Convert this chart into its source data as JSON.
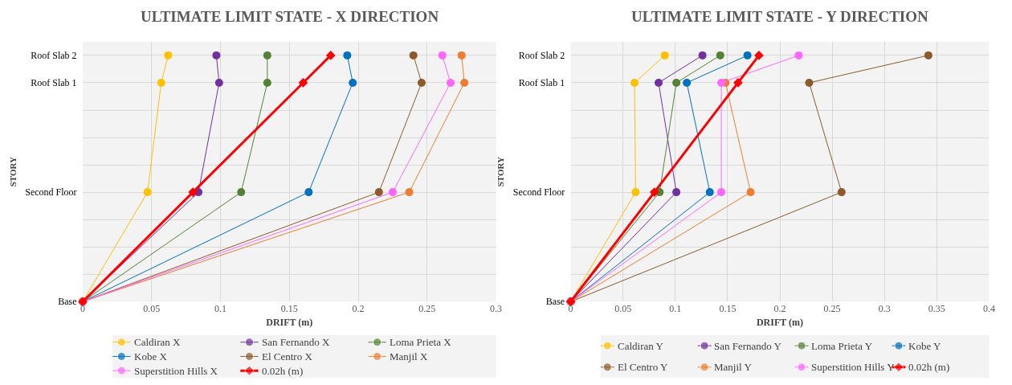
{
  "chart_data": [
    {
      "type": "line",
      "orientation": "horizontal",
      "title": "ULTIMATE LIMIT STATE - X DIRECTION",
      "xlabel": "DRIFT (m)",
      "ylabel": "STORY",
      "categories": [
        "Roof Slab 2",
        "Roof Slab 1",
        null,
        null,
        null,
        "Second Floor",
        null,
        null,
        null,
        "Base"
      ],
      "xlim": [
        0,
        0.3
      ],
      "xticks": [
        0,
        0.05,
        0.1,
        0.15,
        0.2,
        0.25,
        0.3
      ],
      "grid": true,
      "legend": "bottom",
      "marker": "circle",
      "series": [
        {
          "name": "Caldiran X",
          "color": "#ffc000",
          "values": [
            0.062,
            0.057,
            null,
            null,
            null,
            0.047,
            null,
            null,
            null,
            0
          ]
        },
        {
          "name": "San Fernando X",
          "color": "#7030a0",
          "values": [
            0.097,
            0.099,
            null,
            null,
            null,
            0.084,
            null,
            null,
            null,
            0
          ]
        },
        {
          "name": "Loma Prieta X",
          "color": "#548235",
          "values": [
            0.134,
            0.134,
            null,
            null,
            null,
            0.115,
            null,
            null,
            null,
            0
          ]
        },
        {
          "name": "Kobe X",
          "color": "#0070c0",
          "values": [
            0.192,
            0.196,
            null,
            null,
            null,
            0.164,
            null,
            null,
            null,
            0
          ]
        },
        {
          "name": "El Centro X",
          "color": "#8c5a2b",
          "values": [
            0.24,
            0.246,
            null,
            null,
            null,
            0.215,
            null,
            null,
            null,
            0
          ]
        },
        {
          "name": "Manjil X",
          "color": "#ed7d31",
          "values": [
            0.275,
            0.277,
            null,
            null,
            null,
            0.237,
            null,
            null,
            null,
            0
          ]
        },
        {
          "name": "Superstition Hills X",
          "color": "#ff66ff",
          "values": [
            0.261,
            0.267,
            null,
            null,
            null,
            0.225,
            null,
            null,
            null,
            0
          ]
        },
        {
          "name": "0.02h (m)",
          "color": "#ff0000",
          "marker": "diamond",
          "values": [
            0.18,
            0.16,
            null,
            null,
            null,
            0.08,
            null,
            null,
            null,
            0
          ]
        }
      ]
    },
    {
      "type": "line",
      "orientation": "horizontal",
      "title": "ULTIMATE LIMIT STATE - Y DIRECTION",
      "xlabel": "DRIFT (m)",
      "ylabel": "STORY",
      "categories": [
        "Roof Slab 2",
        "Roof Slab 1",
        null,
        null,
        null,
        "Second Floor",
        null,
        null,
        null,
        "Base"
      ],
      "xlim": [
        0,
        0.4
      ],
      "xticks": [
        0,
        0.05,
        0.1,
        0.15,
        0.2,
        0.25,
        0.3,
        0.35,
        0.4
      ],
      "grid": true,
      "legend": "bottom",
      "marker": "circle",
      "series": [
        {
          "name": "Caldiran Y",
          "color": "#ffc000",
          "values": [
            0.09,
            0.061,
            null,
            null,
            null,
            0.062,
            null,
            null,
            null,
            0
          ]
        },
        {
          "name": "San Fernando Y",
          "color": "#7030a0",
          "values": [
            0.126,
            0.084,
            null,
            null,
            null,
            0.101,
            null,
            null,
            null,
            0
          ]
        },
        {
          "name": "Loma Prieta Y",
          "color": "#548235",
          "values": [
            0.143,
            0.101,
            null,
            null,
            null,
            0.085,
            null,
            null,
            null,
            0
          ]
        },
        {
          "name": "Kobe Y",
          "color": "#0070c0",
          "values": [
            0.169,
            0.111,
            null,
            null,
            null,
            0.133,
            null,
            null,
            null,
            0
          ]
        },
        {
          "name": "El Centro Y",
          "color": "#8c5a2b",
          "values": [
            0.342,
            0.228,
            null,
            null,
            null,
            0.259,
            null,
            null,
            null,
            0
          ]
        },
        {
          "name": "Manjil Y",
          "color": "#ed7d31",
          "values": [
            null,
            0.148,
            null,
            null,
            null,
            0.172,
            null,
            null,
            null,
            0
          ]
        },
        {
          "name": "Superstition Hills Y",
          "color": "#ff66ff",
          "values": [
            0.218,
            0.144,
            null,
            null,
            null,
            0.144,
            null,
            null,
            null,
            0
          ]
        },
        {
          "name": "0.02h (m)",
          "color": "#ff0000",
          "marker": "diamond",
          "values": [
            0.18,
            0.16,
            null,
            null,
            null,
            0.08,
            null,
            null,
            null,
            0
          ]
        }
      ]
    }
  ]
}
